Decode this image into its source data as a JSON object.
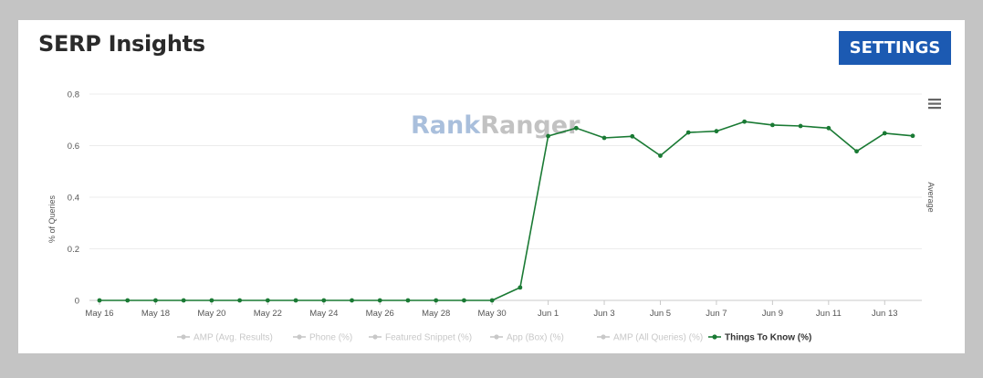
{
  "header": {
    "title": "SERP Insights",
    "settings_label": "SETTINGS"
  },
  "watermark": {
    "part1": "Rank",
    "part2": "Ranger"
  },
  "colors": {
    "accent": "#1c5ab2",
    "series_line": "#1a7a34",
    "watermark_rank": "#a9bfdc",
    "watermark_ranger": "#c2c2c2",
    "legend_inactive": "#c8c8c8",
    "legend_active_text": "#333333"
  },
  "icons": {
    "chart_menu": "hamburger-menu-icon"
  },
  "chart_data": {
    "type": "line",
    "ylabel": "% of Queries",
    "right_label": "Average",
    "ylim": [
      0,
      0.8
    ],
    "yticks": [
      "0",
      "0.2",
      "0.4",
      "0.6",
      "0.8"
    ],
    "ytick_values": [
      0,
      0.2,
      0.4,
      0.6,
      0.8
    ],
    "x": [
      "May 16",
      "May 17",
      "May 18",
      "May 19",
      "May 20",
      "May 21",
      "May 22",
      "May 23",
      "May 24",
      "May 25",
      "May 26",
      "May 27",
      "May 28",
      "May 29",
      "May 30",
      "May 31",
      "Jun 1",
      "Jun 2",
      "Jun 3",
      "Jun 4",
      "Jun 5",
      "Jun 6",
      "Jun 7",
      "Jun 8",
      "Jun 9",
      "Jun 10",
      "Jun 11",
      "Jun 12",
      "Jun 13",
      "Jun 14"
    ],
    "xtick_labels": [
      "May 16",
      "May 18",
      "May 20",
      "May 22",
      "May 24",
      "May 26",
      "May 28",
      "May 30",
      "Jun 1",
      "Jun 3",
      "Jun 5",
      "Jun 7",
      "Jun 9",
      "Jun 11",
      "Jun 13"
    ],
    "series": [
      {
        "name": "Things To Know (%)",
        "values": [
          0,
          0,
          0,
          0,
          0,
          0,
          0,
          0,
          0,
          0,
          0,
          0,
          0,
          0,
          0,
          0.05,
          0.637,
          0.668,
          0.63,
          0.636,
          0.561,
          0.651,
          0.656,
          0.693,
          0.68,
          0.676,
          0.668,
          0.578,
          0.648,
          0.638
        ]
      }
    ],
    "legend": [
      {
        "label": "AMP (Avg. Results)",
        "active": false
      },
      {
        "label": "Phone (%)",
        "active": false
      },
      {
        "label": "Featured Snippet (%)",
        "active": false
      },
      {
        "label": "App (Box) (%)",
        "active": false
      },
      {
        "label": "AMP (All Queries) (%)",
        "active": false
      },
      {
        "label": "Things To Know (%)",
        "active": true
      }
    ],
    "legend_placement": "bottom",
    "grid": true
  }
}
